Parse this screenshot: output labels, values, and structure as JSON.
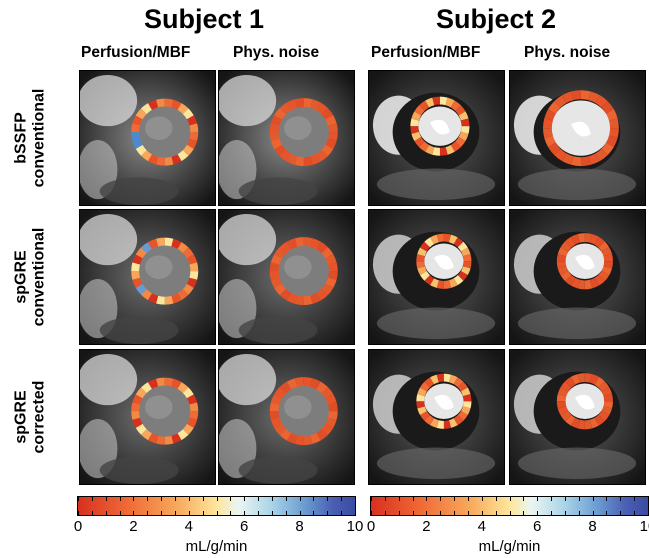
{
  "subjects": [
    {
      "title": "Subject 1",
      "col_labels": [
        "Perfusion/MBF",
        "Phys. noise"
      ]
    },
    {
      "title": "Subject 2",
      "col_labels": [
        "Perfusion/MBF",
        "Phys. noise"
      ]
    }
  ],
  "rows": [
    {
      "line1": "bSSFP",
      "line2": "conventional"
    },
    {
      "line1": "spGRE",
      "line2": "conventional"
    },
    {
      "line1": "spGRE",
      "line2": "corrected"
    }
  ],
  "colorbar": {
    "ticks": [
      "0",
      "2",
      "4",
      "6",
      "8",
      "10"
    ],
    "unit": "mL/g/min",
    "colormap": [
      "#d7301f",
      "#f06a36",
      "#f7a65a",
      "#fde69b",
      "#eaf5f2",
      "#a9d3e8",
      "#6a9bd0",
      "#4a5fb3",
      "#3a4ba3"
    ]
  }
}
